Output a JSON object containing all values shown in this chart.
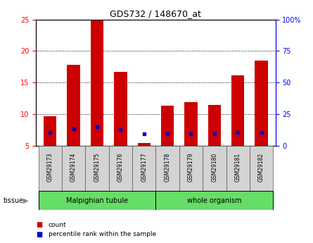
{
  "title": "GDS732 / 148670_at",
  "samples": [
    "GSM29173",
    "GSM29174",
    "GSM29175",
    "GSM29176",
    "GSM29177",
    "GSM29178",
    "GSM29179",
    "GSM29180",
    "GSM29181",
    "GSM29182"
  ],
  "count_values": [
    9.7,
    17.8,
    25.0,
    16.7,
    5.5,
    11.3,
    11.9,
    11.5,
    16.1,
    18.5
  ],
  "percentile_values": [
    10.7,
    13.3,
    15.0,
    12.8,
    9.3,
    9.7,
    9.4,
    9.3,
    10.5,
    10.6
  ],
  "y_min": 5,
  "y_max": 25,
  "y_ticks": [
    5,
    10,
    15,
    20,
    25
  ],
  "y2_ticks": [
    0,
    25,
    50,
    75,
    100
  ],
  "bar_color": "#cc0000",
  "dot_color": "#0000cc",
  "bar_width": 0.55,
  "group1_label": "Malpighian tubule",
  "group1_n": 5,
  "group2_label": "whole organism",
  "group2_n": 5,
  "group_color": "#66dd66",
  "legend_label_count": "count",
  "legend_label_pct": "percentile rank within the sample",
  "tissue_label": "tissue"
}
